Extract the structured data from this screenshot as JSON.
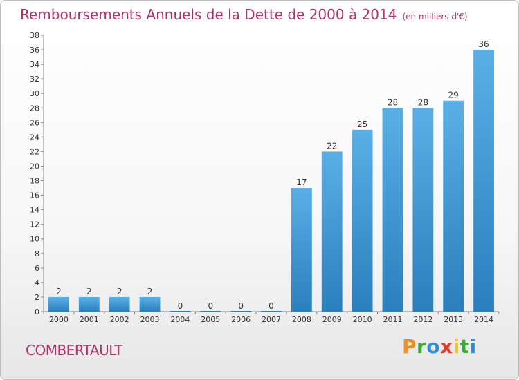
{
  "title": "Remboursements Annuels de la Dette de 2000 à 2014",
  "unit": "(en milliers d'€)",
  "commune": "COMBERTAULT",
  "logo": {
    "letters": [
      "P",
      "r",
      "o",
      "x",
      "i",
      "t",
      "i"
    ],
    "colors": [
      "#f28c1c",
      "#3aaa35",
      "#2f8fd6",
      "#e23b2e",
      "#f0c419",
      "#3aaa35",
      "#2f8fd6"
    ]
  },
  "chart_data": {
    "type": "bar",
    "categories": [
      "2000",
      "2001",
      "2002",
      "2003",
      "2004",
      "2005",
      "2006",
      "2007",
      "2008",
      "2009",
      "2010",
      "2011",
      "2012",
      "2013",
      "2014"
    ],
    "values": [
      2,
      2,
      2,
      2,
      0,
      0,
      0,
      0,
      17,
      22,
      25,
      28,
      28,
      29,
      36
    ],
    "data_labels": [
      "2",
      "2",
      "2",
      "2",
      "0",
      "0",
      "0",
      "0",
      "17",
      "22",
      "25",
      "28",
      "28",
      "29",
      "36"
    ],
    "ylim": [
      0,
      38
    ],
    "yticks": [
      0,
      2,
      4,
      6,
      8,
      10,
      12,
      14,
      16,
      18,
      20,
      22,
      24,
      26,
      28,
      30,
      32,
      34,
      36,
      38
    ],
    "grid": false,
    "colors": {
      "bar_light": "#5aafe6",
      "bar_dark": "#2a7fbd",
      "axis": "#888888",
      "text": "#333333"
    }
  }
}
